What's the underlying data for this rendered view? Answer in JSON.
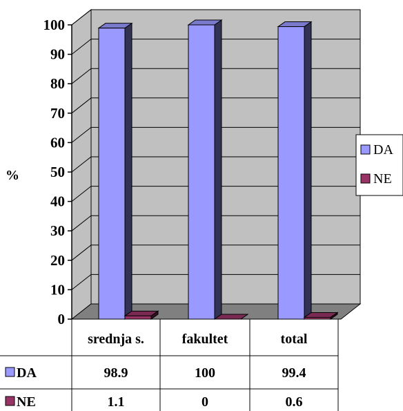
{
  "chart_data": {
    "type": "bar",
    "ylabel": "%",
    "ylim": [
      0,
      100
    ],
    "yticks": [
      "0",
      "10",
      "20",
      "30",
      "40",
      "50",
      "60",
      "70",
      "80",
      "90",
      "100"
    ],
    "grid": true,
    "legend_position": "right",
    "categories": [
      "srednja s.",
      "fakultet",
      "total"
    ],
    "series": [
      {
        "name": "DA",
        "values": [
          98.9,
          100,
          99.4
        ],
        "value_labels": [
          "98.9",
          "100",
          "99.4"
        ],
        "color": "#9999ff"
      },
      {
        "name": "NE",
        "values": [
          1.1,
          0,
          0.6
        ],
        "value_labels": [
          "1.1",
          "0",
          "0.6"
        ],
        "color": "#993366"
      }
    ]
  },
  "colors": {
    "wall": "#c0c0c0",
    "floor": "#808080",
    "grid": "#000000"
  }
}
